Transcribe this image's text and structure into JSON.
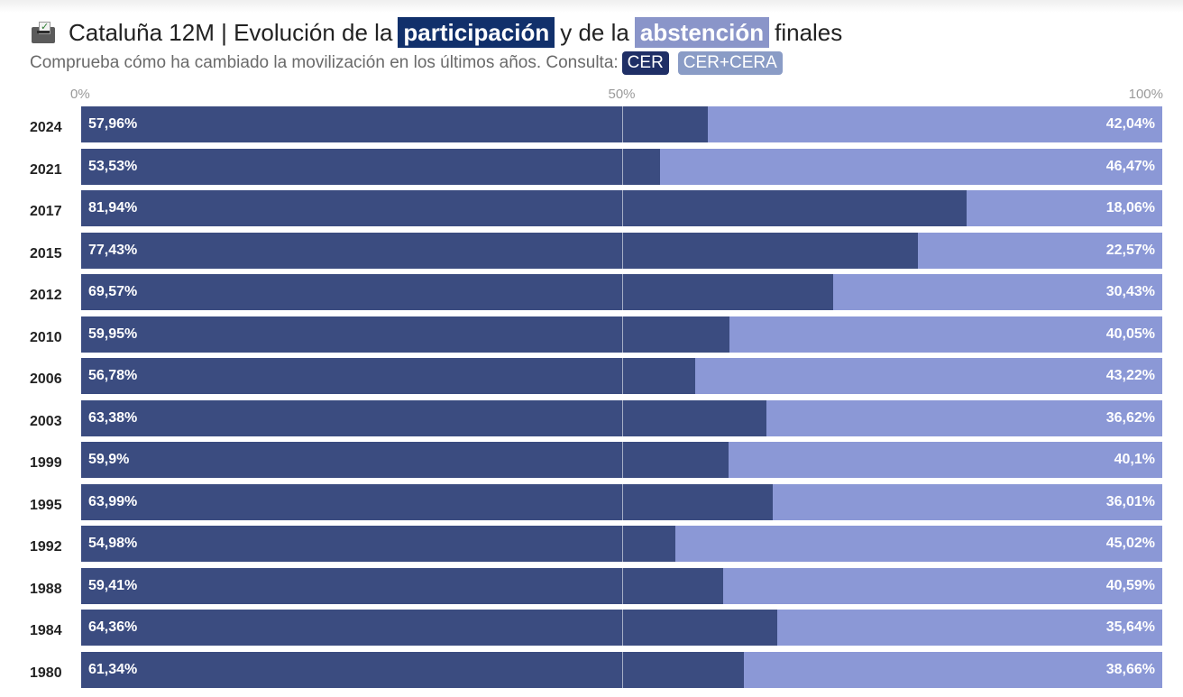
{
  "header": {
    "title_prefix": "Cataluña 12M | Evolución de la",
    "title_highlight_1": "participación",
    "title_middle": "y de la",
    "title_highlight_2": "abstención",
    "title_suffix": "finales",
    "subtitle": "Comprueba cómo ha cambiado la movilización en los últimos años. Consulta:",
    "filter_cer": "CER",
    "filter_cer_cera": "CER+CERA",
    "icon": "ballot-box-icon"
  },
  "colors": {
    "participation": "#3b4c80",
    "abstention": "#8b98d6",
    "highlight_participation": "#11306b",
    "highlight_abstention": "#8a95c9"
  },
  "chart_data": {
    "type": "bar",
    "orientation": "horizontal-stacked-100",
    "axis_ticks": [
      "0%",
      "50%",
      "100%"
    ],
    "xlim": [
      0,
      100
    ],
    "categories": [
      "2024",
      "2021",
      "2017",
      "2015",
      "2012",
      "2010",
      "2006",
      "2003",
      "1999",
      "1995",
      "1992",
      "1988",
      "1984",
      "1980"
    ],
    "series": [
      {
        "key": "participation",
        "values": [
          57.96,
          53.53,
          81.94,
          77.43,
          69.57,
          59.95,
          56.78,
          63.38,
          59.9,
          63.99,
          54.98,
          59.41,
          64.36,
          61.34
        ],
        "labels": [
          "57,96%",
          "53,53%",
          "81,94%",
          "77,43%",
          "69,57%",
          "59,95%",
          "56,78%",
          "63,38%",
          "59,9%",
          "63,99%",
          "54,98%",
          "59,41%",
          "64,36%",
          "61,34%"
        ]
      },
      {
        "key": "abstention",
        "values": [
          42.04,
          46.47,
          18.06,
          22.57,
          30.43,
          40.05,
          43.22,
          36.62,
          40.1,
          36.01,
          45.02,
          40.59,
          35.64,
          38.66
        ],
        "labels": [
          "42,04%",
          "46,47%",
          "18,06%",
          "22,57%",
          "30,43%",
          "40,05%",
          "43,22%",
          "36,62%",
          "40,1%",
          "36,01%",
          "45,02%",
          "40,59%",
          "35,64%",
          "38,66%"
        ]
      }
    ]
  }
}
